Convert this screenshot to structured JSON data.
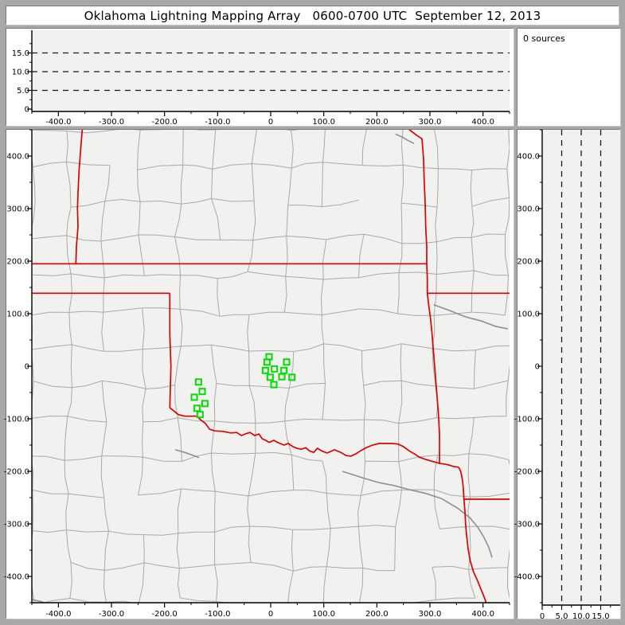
{
  "title": "Oklahoma Lightning Mapping Array   0600-0700 UTC  September 12, 2013",
  "sources_label": "0 sources",
  "colors": {
    "frame": "#a8a8a8",
    "panel": "#ffffff",
    "plot_bg": "#f1f1f0",
    "county_line": "#a9a9a9",
    "river_line": "#8f8f8f",
    "state_line": "#dd0000",
    "station_marker": "#00dd00",
    "grid_dash": "#1a1a1a",
    "spine": "#000000"
  },
  "chart_data": {
    "type": "scatter",
    "title": "Oklahoma Lightning Mapping Array   0600-0700 UTC  September 12, 2013",
    "sources_count": 0,
    "legend": "0 sources",
    "panels": [
      {
        "id": "altitude-vs-eastwest",
        "xlim": [
          -450,
          450
        ],
        "ylim": [
          0,
          20
        ],
        "dashed_gridlines_at": [
          5,
          10,
          15
        ],
        "points": []
      },
      {
        "id": "plan-view-map",
        "xlim": [
          -450,
          450
        ],
        "ylim": [
          -450,
          450
        ],
        "markers": "LMA station squares"
      },
      {
        "id": "altitude-vs-northsouth",
        "xlim": [
          0,
          20
        ],
        "ylim": [
          -450,
          450
        ],
        "dashed_gridlines_at": [
          5,
          10,
          15
        ],
        "points": []
      }
    ],
    "axis_ticks": {
      "km_major": [
        [
          -400,
          "-400.0"
        ],
        [
          -300,
          "-300.0"
        ],
        [
          -200,
          "-200.0"
        ],
        [
          -100,
          "-100.0"
        ],
        [
          0,
          "0"
        ],
        [
          100,
          "100.0"
        ],
        [
          200,
          "200.0"
        ],
        [
          300,
          "300.0"
        ],
        [
          400,
          "400.0"
        ]
      ],
      "km_minor_step": 50,
      "alt_major": [
        [
          0,
          "0"
        ],
        [
          5,
          "5.0"
        ],
        [
          10,
          "10.0"
        ],
        [
          15,
          "15.0"
        ]
      ],
      "alt_minor_step": 2.5
    },
    "stations": [
      [
        -136,
        -30
      ],
      [
        -129,
        -48
      ],
      [
        -144,
        -59
      ],
      [
        -124,
        -71
      ],
      [
        -139,
        -80
      ],
      [
        -133,
        -92
      ],
      [
        -3,
        18
      ],
      [
        -7,
        8
      ],
      [
        30,
        8
      ],
      [
        -10,
        -8
      ],
      [
        7,
        -5
      ],
      [
        25,
        -8
      ],
      [
        -1,
        -21
      ],
      [
        21,
        -20
      ],
      [
        40,
        -21
      ],
      [
        6,
        -35
      ]
    ]
  },
  "map": {
    "county_grid": {
      "seed": 11,
      "cols": 14,
      "rows": 14,
      "jitter": 6,
      "keep_h": 0.9,
      "keep_v": 0.82
    },
    "state_borders": [
      {
        "name": "nm-tx-border",
        "points": [
          [
            -355,
            450
          ],
          [
            -358,
            412
          ],
          [
            -361,
            372
          ],
          [
            -363,
            330
          ],
          [
            -364,
            300
          ],
          [
            -363,
            266
          ],
          [
            -366,
            228
          ],
          [
            -367,
            195
          ]
        ]
      },
      {
        "name": "ks-ok-north-border",
        "points": [
          [
            -450,
            195
          ],
          [
            294,
            195
          ]
        ]
      },
      {
        "name": "panhandle-south-border",
        "points": [
          [
            -450,
            139
          ],
          [
            -190,
            139
          ]
        ]
      },
      {
        "name": "mo-ar-border",
        "points": [
          [
            295,
            139
          ],
          [
            450,
            139
          ]
        ]
      },
      {
        "name": "tx-ok-100th-meridian",
        "points": [
          [
            -190,
            139
          ],
          [
            -190,
            60
          ],
          [
            -188,
            0
          ],
          [
            -190,
            -79
          ]
        ]
      },
      {
        "name": "ks-mo-ok-ar-border",
        "points": [
          [
            258,
            453
          ],
          [
            264,
            448
          ],
          [
            273,
            441
          ],
          [
            280,
            436
          ],
          [
            285,
            433
          ],
          [
            288,
            394
          ],
          [
            289,
            356
          ],
          [
            291,
            311
          ],
          [
            292,
            265
          ],
          [
            294,
            227
          ],
          [
            294,
            195
          ],
          [
            295,
            167
          ],
          [
            295,
            139
          ],
          [
            298,
            114
          ],
          [
            301,
            91
          ],
          [
            304,
            61
          ],
          [
            307,
            23
          ],
          [
            310,
            -15
          ],
          [
            313,
            -53
          ],
          [
            316,
            -91
          ],
          [
            318,
            -129
          ],
          [
            318,
            -159
          ],
          [
            318,
            -185
          ]
        ]
      },
      {
        "name": "red-river",
        "points": [
          [
            -190,
            -79
          ],
          [
            -174,
            -92
          ],
          [
            -162,
            -95
          ],
          [
            -139,
            -95
          ],
          [
            -132,
            -102
          ],
          [
            -123,
            -109
          ],
          [
            -115,
            -120
          ],
          [
            -105,
            -123
          ],
          [
            -90,
            -124
          ],
          [
            -75,
            -127
          ],
          [
            -64,
            -126
          ],
          [
            -55,
            -132
          ],
          [
            -48,
            -129
          ],
          [
            -39,
            -126
          ],
          [
            -30,
            -132
          ],
          [
            -22,
            -129
          ],
          [
            -16,
            -138
          ],
          [
            -9,
            -141
          ],
          [
            -3,
            -145
          ],
          [
            6,
            -141
          ],
          [
            13,
            -145
          ],
          [
            25,
            -150
          ],
          [
            33,
            -147
          ],
          [
            42,
            -153
          ],
          [
            49,
            -156
          ],
          [
            57,
            -158
          ],
          [
            66,
            -155
          ],
          [
            73,
            -161
          ],
          [
            81,
            -164
          ],
          [
            88,
            -156
          ],
          [
            96,
            -161
          ],
          [
            106,
            -165
          ],
          [
            114,
            -162
          ],
          [
            120,
            -159
          ],
          [
            132,
            -164
          ],
          [
            142,
            -170
          ],
          [
            151,
            -171
          ],
          [
            160,
            -167
          ],
          [
            169,
            -161
          ],
          [
            180,
            -155
          ],
          [
            192,
            -150
          ],
          [
            204,
            -147
          ],
          [
            216,
            -147
          ],
          [
            228,
            -147
          ],
          [
            240,
            -148
          ],
          [
            250,
            -153
          ],
          [
            261,
            -161
          ],
          [
            271,
            -167
          ],
          [
            280,
            -173
          ],
          [
            291,
            -177
          ],
          [
            301,
            -180
          ],
          [
            312,
            -183
          ],
          [
            318,
            -185
          ],
          [
            327,
            -186
          ],
          [
            336,
            -188
          ],
          [
            345,
            -191
          ],
          [
            354,
            -192
          ]
        ]
      },
      {
        "name": "tx-ar-border",
        "points": [
          [
            354,
            -192
          ],
          [
            358,
            -200
          ],
          [
            361,
            -215
          ],
          [
            363,
            -233
          ],
          [
            364,
            -253
          ]
        ]
      },
      {
        "name": "ar-la-border",
        "points": [
          [
            364,
            -253
          ],
          [
            450,
            -253
          ]
        ]
      },
      {
        "name": "tx-la-border",
        "points": [
          [
            364,
            -253
          ],
          [
            366,
            -276
          ],
          [
            367,
            -298
          ],
          [
            369,
            -321
          ],
          [
            372,
            -348
          ],
          [
            376,
            -371
          ],
          [
            382,
            -391
          ],
          [
            390,
            -409
          ],
          [
            396,
            -424
          ],
          [
            402,
            -439
          ],
          [
            406,
            -450
          ]
        ]
      }
    ],
    "rivers": [
      {
        "points": [
          [
            135,
            -200
          ],
          [
            172,
            -212
          ],
          [
            202,
            -221
          ],
          [
            232,
            -227
          ],
          [
            262,
            -235
          ],
          [
            292,
            -242
          ],
          [
            322,
            -252
          ],
          [
            352,
            -270
          ],
          [
            375,
            -288
          ],
          [
            390,
            -306
          ],
          [
            402,
            -326
          ],
          [
            411,
            -345
          ],
          [
            417,
            -364
          ]
        ]
      },
      {
        "points": [
          [
            307,
            117
          ],
          [
            337,
            106
          ],
          [
            367,
            94
          ],
          [
            397,
            86
          ],
          [
            423,
            76
          ],
          [
            447,
            71
          ]
        ]
      },
      {
        "points": [
          [
            -180,
            -159
          ],
          [
            -162,
            -164
          ],
          [
            -145,
            -170
          ],
          [
            -135,
            -174
          ]
        ]
      },
      {
        "points": [
          [
            -450,
            -444
          ],
          [
            -432,
            -448
          ],
          [
            -417,
            -453
          ]
        ]
      },
      {
        "points": [
          [
            235,
            442
          ],
          [
            248,
            436
          ],
          [
            258,
            430
          ],
          [
            270,
            424
          ]
        ]
      }
    ]
  }
}
